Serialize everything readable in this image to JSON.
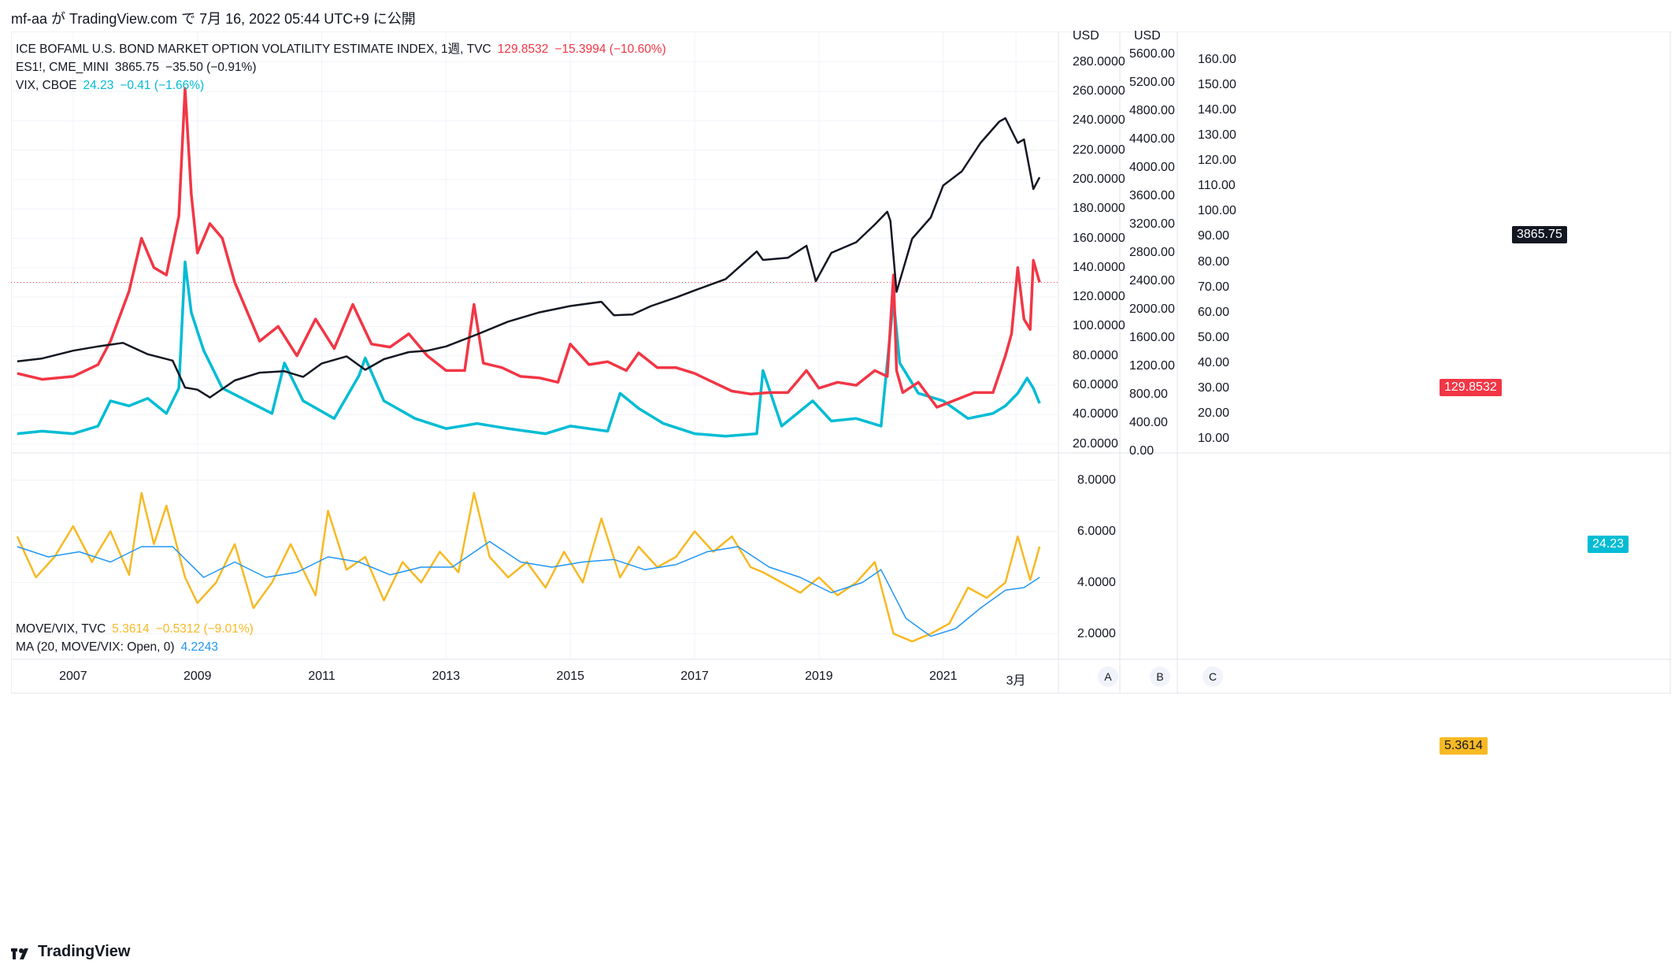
{
  "header": "mf-aa が TradingView.com で 7月 16, 2022 05:44 UTC+9 に公開",
  "brand": "TradingView",
  "legend_top": [
    {
      "name": "ICE BOFAML U.S. BOND MARKET OPTION VOLATILITY ESTIMATE INDEX, 1週, TVC",
      "value": "129.8532",
      "change": "−15.3994 (−10.60%)",
      "color": "#f23645"
    },
    {
      "name": "ES1!, CME_MINI",
      "value": "3865.75",
      "change": "−35.50 (−0.91%)",
      "color": "#131722"
    },
    {
      "name": "VIX, CBOE",
      "value": "24.23",
      "change": "−0.41 (−1.66%)",
      "color": "#00bcd4"
    }
  ],
  "legend_bottom": [
    {
      "name": "MOVE/VIX, TVC",
      "value": "5.3614",
      "change": "−0.5312 (−9.01%)",
      "color": "#f7b924"
    },
    {
      "name": "MA (20, MOVE/VIX: Open, 0)",
      "value": "4.2243",
      "change": "",
      "color": "#2196f3"
    }
  ],
  "axes": {
    "A": {
      "unit": "USD",
      "ticks": [
        "280.0000",
        "260.0000",
        "240.0000",
        "220.0000",
        "200.0000",
        "180.0000",
        "160.0000",
        "140.0000",
        "120.0000",
        "100.0000",
        "80.0000",
        "60.0000",
        "40.0000",
        "20.0000"
      ]
    },
    "B": {
      "unit": "USD",
      "ticks": [
        "5600.00",
        "5200.00",
        "4800.00",
        "4400.00",
        "4000.00",
        "3600.00",
        "3200.00",
        "2800.00",
        "2400.00",
        "2000.00",
        "1600.00",
        "1200.00",
        "800.00",
        "400.00",
        "0.00"
      ]
    },
    "C": {
      "ticks": [
        "160.00",
        "150.00",
        "140.00",
        "130.00",
        "120.00",
        "110.00",
        "100.00",
        "90.00",
        "80.00",
        "70.00",
        "60.00",
        "50.00",
        "40.00",
        "30.00",
        "20.00",
        "10.00"
      ]
    },
    "lower": {
      "ticks": [
        "8.0000",
        "6.0000",
        "4.0000",
        "2.0000"
      ]
    },
    "x": {
      "ticks": [
        "2007",
        "2009",
        "2011",
        "2013",
        "2015",
        "2017",
        "2019",
        "2021",
        "3月"
      ]
    },
    "scale_buttons": [
      "A",
      "B",
      "C"
    ]
  },
  "price_tags": {
    "move": "129.8532",
    "es": "3865.75",
    "vix": "24.23",
    "ratio": "5.3614"
  },
  "chart_data": [
    {
      "type": "line",
      "series": [
        {
          "name": "ICE BOFAML U.S. BOND MARKET OPTION VOLATILITY ESTIMATE INDEX",
          "color": "#f23645",
          "x": [
            2006.1,
            2006.5,
            2007.0,
            2007.4,
            2007.6,
            2007.9,
            2008.1,
            2008.3,
            2008.5,
            2008.7,
            2008.8,
            2008.9,
            2009.0,
            2009.2,
            2009.4,
            2009.6,
            2009.8,
            2010.0,
            2010.3,
            2010.6,
            2010.9,
            2011.2,
            2011.5,
            2011.8,
            2012.1,
            2012.4,
            2012.7,
            2013.0,
            2013.3,
            2013.45,
            2013.6,
            2013.9,
            2014.2,
            2014.5,
            2014.8,
            2015.0,
            2015.3,
            2015.6,
            2015.9,
            2016.1,
            2016.4,
            2016.7,
            2017.0,
            2017.3,
            2017.6,
            2017.9,
            2018.2,
            2018.5,
            2018.8,
            2019.0,
            2019.3,
            2019.6,
            2019.9,
            2020.1,
            2020.2,
            2020.25,
            2020.35,
            2020.6,
            2020.9,
            2021.2,
            2021.5,
            2021.8,
            2022.0,
            2022.1,
            2022.2,
            2022.3,
            2022.4,
            2022.45,
            2022.55
          ],
          "values": [
            68,
            64,
            66,
            74,
            90,
            124,
            160,
            140,
            135,
            175,
            262,
            190,
            150,
            170,
            160,
            130,
            110,
            90,
            100,
            80,
            105,
            85,
            115,
            88,
            86,
            95,
            80,
            70,
            70,
            115,
            75,
            72,
            66,
            65,
            62,
            88,
            74,
            76,
            70,
            82,
            72,
            72,
            68,
            62,
            56,
            54,
            55,
            55,
            70,
            58,
            62,
            60,
            70,
            66,
            135,
            70,
            55,
            62,
            45,
            50,
            55,
            55,
            80,
            95,
            140,
            105,
            98,
            145,
            130
          ]
        },
        {
          "name": "ES1!, CME_MINI",
          "color": "#131722",
          "x": [
            2006.1,
            2006.5,
            2007.0,
            2007.4,
            2007.8,
            2008.2,
            2008.6,
            2008.8,
            2009.0,
            2009.2,
            2009.6,
            2010.0,
            2010.4,
            2010.7,
            2011.0,
            2011.4,
            2011.7,
            2012.0,
            2012.4,
            2012.7,
            2013.0,
            2013.5,
            2014.0,
            2014.5,
            2015.0,
            2015.5,
            2015.7,
            2016.0,
            2016.3,
            2016.7,
            2017.0,
            2017.5,
            2018.0,
            2018.1,
            2018.5,
            2018.8,
            2018.95,
            2019.2,
            2019.6,
            2019.9,
            2020.1,
            2020.15,
            2020.25,
            2020.5,
            2020.8,
            2021.0,
            2021.3,
            2021.6,
            2021.9,
            2022.0,
            2022.2,
            2022.3,
            2022.45,
            2022.55
          ],
          "values": [
            1270,
            1310,
            1420,
            1480,
            1530,
            1370,
            1280,
            900,
            870,
            760,
            1000,
            1110,
            1130,
            1050,
            1240,
            1340,
            1150,
            1300,
            1400,
            1420,
            1480,
            1650,
            1830,
            1960,
            2050,
            2110,
            1920,
            1930,
            2050,
            2170,
            2270,
            2430,
            2820,
            2700,
            2730,
            2900,
            2400,
            2800,
            2950,
            3200,
            3380,
            3250,
            2250,
            3000,
            3300,
            3750,
            3950,
            4350,
            4650,
            4700,
            4350,
            4400,
            3700,
            3865
          ]
        },
        {
          "name": "VIX, CBOE",
          "color": "#00bcd4",
          "x": [
            2006.1,
            2006.5,
            2007.0,
            2007.4,
            2007.6,
            2007.9,
            2008.2,
            2008.5,
            2008.7,
            2008.8,
            2008.9,
            2009.1,
            2009.4,
            2009.8,
            2010.2,
            2010.4,
            2010.7,
            2011.2,
            2011.6,
            2011.7,
            2012.0,
            2012.5,
            2013.0,
            2013.5,
            2014.0,
            2014.6,
            2015.0,
            2015.6,
            2015.8,
            2016.1,
            2016.5,
            2017.0,
            2017.5,
            2018.0,
            2018.1,
            2018.4,
            2018.9,
            2019.2,
            2019.6,
            2020.0,
            2020.2,
            2020.3,
            2020.6,
            2021.0,
            2021.4,
            2021.8,
            2022.0,
            2022.2,
            2022.35,
            2022.45,
            2022.55
          ],
          "values": [
            12,
            13,
            12,
            15,
            25,
            23,
            26,
            20,
            30,
            80,
            60,
            45,
            30,
            25,
            20,
            40,
            25,
            18,
            35,
            42,
            25,
            18,
            14,
            16,
            14,
            12,
            15,
            13,
            28,
            22,
            16,
            12,
            11,
            12,
            37,
            15,
            25,
            17,
            18,
            15,
            65,
            40,
            28,
            25,
            18,
            20,
            23,
            28,
            34,
            30,
            24
          ]
        }
      ],
      "axes_ranges": {
        "A": [
          15,
          290
        ],
        "B": [
          0,
          5700
        ],
        "C": [
          5,
          165
        ]
      },
      "xlim": [
        2006.0,
        2022.6
      ]
    },
    {
      "type": "line",
      "series": [
        {
          "name": "MOVE/VIX, TVC",
          "color": "#f7b924",
          "x": [
            2006.1,
            2006.4,
            2006.7,
            2007.0,
            2007.3,
            2007.6,
            2007.9,
            2008.1,
            2008.3,
            2008.5,
            2008.8,
            2009.0,
            2009.3,
            2009.6,
            2009.9,
            2010.2,
            2010.5,
            2010.9,
            2011.1,
            2011.4,
            2011.7,
            2012.0,
            2012.3,
            2012.6,
            2012.9,
            2013.2,
            2013.45,
            2013.7,
            2014.0,
            2014.3,
            2014.6,
            2014.9,
            2015.2,
            2015.5,
            2015.8,
            2016.1,
            2016.4,
            2016.7,
            2017.0,
            2017.3,
            2017.6,
            2017.9,
            2018.1,
            2018.4,
            2018.7,
            2019.0,
            2019.3,
            2019.6,
            2019.9,
            2020.2,
            2020.5,
            2020.8,
            2021.1,
            2021.4,
            2021.7,
            2022.0,
            2022.2,
            2022.4,
            2022.55
          ],
          "values": [
            5.8,
            4.2,
            5.0,
            6.2,
            4.8,
            6.0,
            4.3,
            7.5,
            5.5,
            7.0,
            4.2,
            3.2,
            4.0,
            5.5,
            3.0,
            4.0,
            5.5,
            3.5,
            6.8,
            4.5,
            5.0,
            3.3,
            4.8,
            4.0,
            5.2,
            4.4,
            7.5,
            5.0,
            4.2,
            4.8,
            3.8,
            5.2,
            4.0,
            6.5,
            4.2,
            5.4,
            4.6,
            5.0,
            6.0,
            5.2,
            5.8,
            4.6,
            4.4,
            4.0,
            3.6,
            4.2,
            3.5,
            4.0,
            4.8,
            2.0,
            1.7,
            2.0,
            2.4,
            3.8,
            3.4,
            4.0,
            5.8,
            4.1,
            5.4
          ]
        },
        {
          "name": "MA (20, MOVE/VIX: Open, 0)",
          "color": "#2196f3",
          "x": [
            2006.1,
            2006.6,
            2007.1,
            2007.6,
            2008.1,
            2008.6,
            2009.1,
            2009.6,
            2010.1,
            2010.6,
            2011.1,
            2011.6,
            2012.1,
            2012.6,
            2013.1,
            2013.7,
            2014.2,
            2014.7,
            2015.2,
            2015.7,
            2016.2,
            2016.7,
            2017.2,
            2017.7,
            2018.2,
            2018.7,
            2019.2,
            2019.7,
            2020.0,
            2020.4,
            2020.8,
            2021.2,
            2021.6,
            2022.0,
            2022.3,
            2022.55
          ],
          "values": [
            5.4,
            5.0,
            5.2,
            4.8,
            5.4,
            5.4,
            4.2,
            4.8,
            4.2,
            4.4,
            5.0,
            4.8,
            4.3,
            4.6,
            4.6,
            5.6,
            4.8,
            4.6,
            4.8,
            4.9,
            4.5,
            4.7,
            5.2,
            5.4,
            4.6,
            4.2,
            3.6,
            4.0,
            4.5,
            2.6,
            1.9,
            2.2,
            3.0,
            3.7,
            3.8,
            4.2
          ]
        }
      ],
      "ylim": [
        1.0,
        9.0
      ],
      "xlim": [
        2006.0,
        2022.6
      ]
    }
  ]
}
